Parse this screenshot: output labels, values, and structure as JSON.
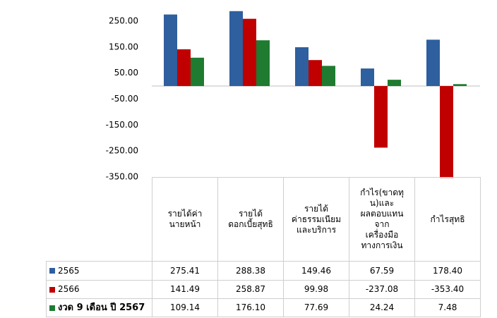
{
  "chart_data": {
    "type": "bar",
    "categories": [
      "รายได้ค่า\nนายหน้า",
      "รายได้\nดอกเบี้ยสุทธิ",
      "รายได้\nค่าธรรมเนียม\nและบริการ",
      "กำไร(ขาดทุ\nน)และ\nผลตอบแทน\nจาก\nเครื่องมือ\nทางการเงิน",
      "กำไรสุทธิ"
    ],
    "series": [
      {
        "name": "2565",
        "color": "#2e5f9e",
        "values": [
          275.41,
          288.38,
          149.46,
          67.59,
          178.4
        ],
        "value_labels": [
          "275.41",
          "288.38",
          "149.46",
          "67.59",
          "178.40"
        ]
      },
      {
        "name": "2566",
        "color": "#c00000",
        "values": [
          141.49,
          258.87,
          99.98,
          -237.08,
          -353.4
        ],
        "value_labels": [
          "141.49",
          "258.87",
          "99.98",
          "-237.08",
          "-353.40"
        ]
      },
      {
        "name": "งวด 9 เดือน ปี 2567",
        "color": "#1e7b30",
        "values": [
          109.14,
          176.1,
          77.69,
          24.24,
          7.48
        ],
        "value_labels": [
          "109.14",
          "176.10",
          "77.69",
          "24.24",
          "7.48"
        ]
      }
    ],
    "ylim": [
      -350,
      300
    ],
    "yticks": [
      {
        "value": 250,
        "label": "250.00"
      },
      {
        "value": 150,
        "label": "150.00"
      },
      {
        "value": 50,
        "label": "50.00"
      },
      {
        "value": -50,
        "label": "-50.00"
      },
      {
        "value": -150,
        "label": "-150.00"
      },
      {
        "value": -250,
        "label": "-250.00"
      },
      {
        "value": -350,
        "label": "-350.00"
      }
    ]
  }
}
